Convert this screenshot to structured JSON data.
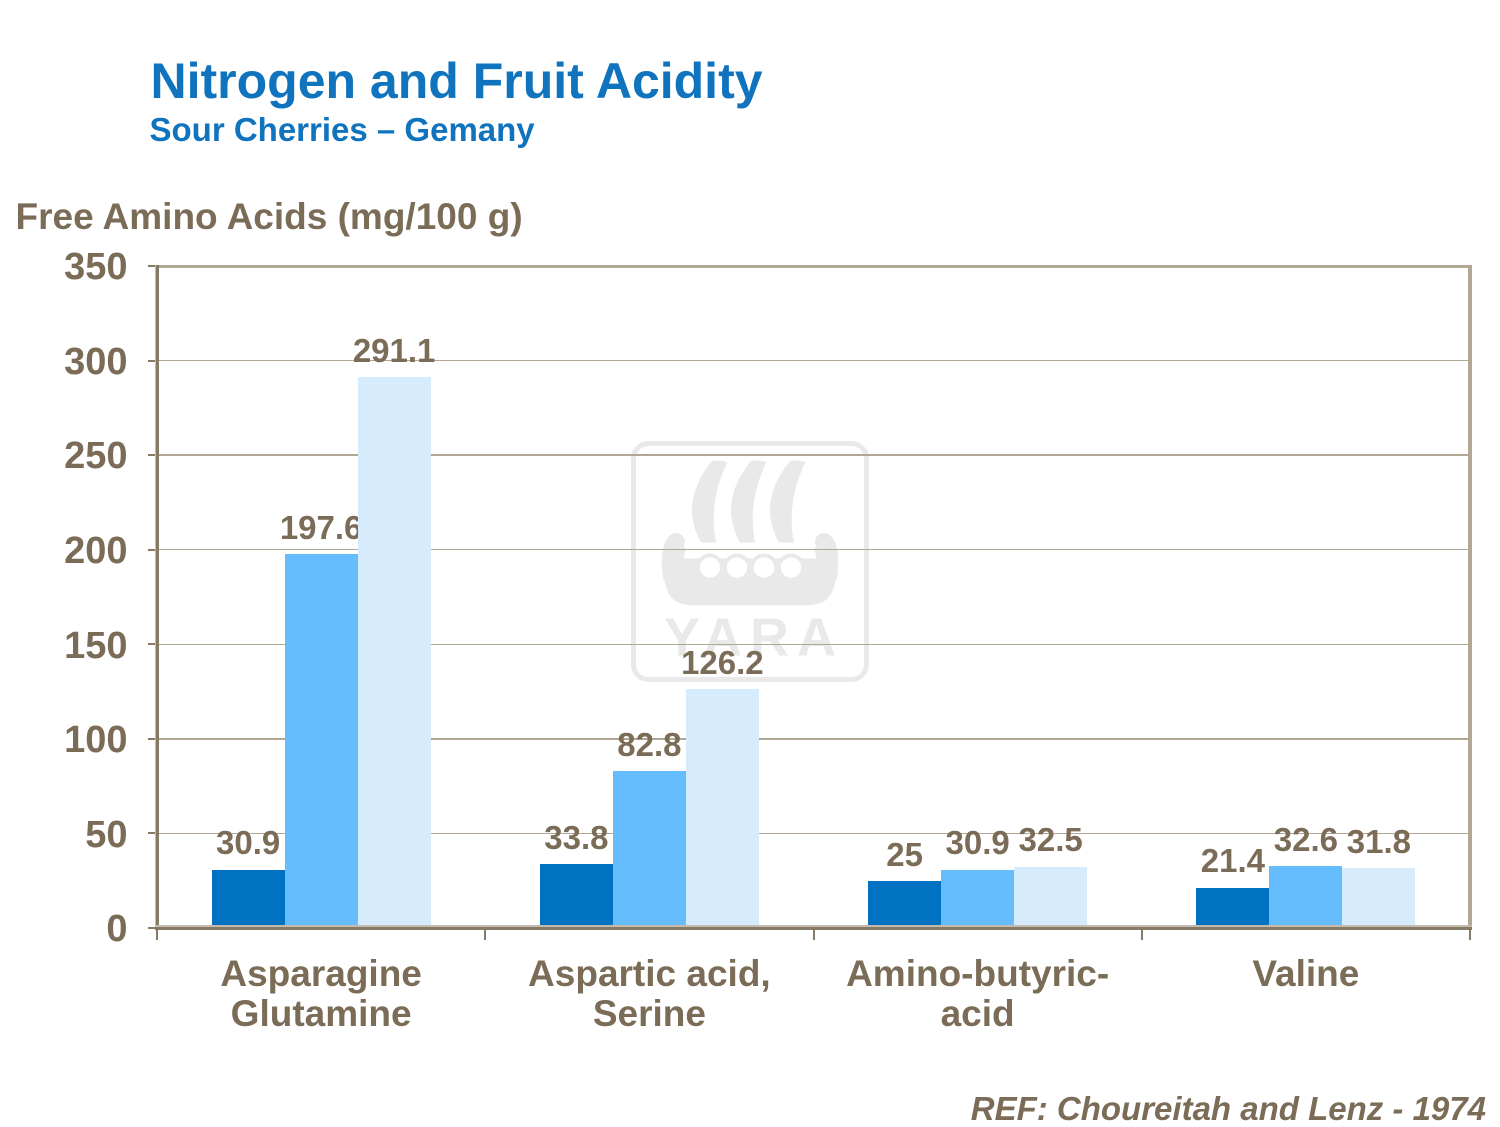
{
  "slide": {
    "title": "Nitrogen and Fruit Acidity",
    "subtitle": "Sour Cherries – Gemany",
    "reference": "REF: Choureitah and Lenz - 1974",
    "title_color": "#0f73bd",
    "text_color": "#7b6c57",
    "background_color": "#ffffff"
  },
  "watermark": {
    "icon": "yara-viking-ship-logo",
    "label": "YARA",
    "color": "#e9e9e9"
  },
  "chart_data": {
    "type": "bar",
    "ylabel": "Free Amino Acids (mg/100 g)",
    "categories": [
      {
        "label": "Asparagine Glutamine",
        "lines": [
          "Asparagine",
          "Glutamine"
        ]
      },
      {
        "label": "Aspartic acid, Serine",
        "lines": [
          "Aspartic acid,",
          "Serine"
        ]
      },
      {
        "label": "Amino-butyric-acid",
        "lines": [
          "Amino-butyric-",
          "acid"
        ]
      },
      {
        "label": "Valine",
        "lines": [
          "Valine"
        ]
      }
    ],
    "series": [
      {
        "color": "#0171c2",
        "values": [
          30.9,
          33.8,
          25,
          21.4
        ],
        "labels": [
          "30.9",
          "33.8",
          "25",
          "21.4"
        ]
      },
      {
        "color": "#66bdfe",
        "values": [
          197.6,
          82.8,
          30.9,
          32.6
        ],
        "labels": [
          "197.6",
          "82.8",
          "30.9",
          "32.6"
        ]
      },
      {
        "color": "#d6ebfc",
        "values": [
          291.1,
          126.2,
          32.5,
          31.8
        ],
        "labels": [
          "291.1",
          "126.2",
          "32.5",
          "31.8"
        ]
      }
    ],
    "ylim": [
      0,
      350
    ],
    "yticks": [
      0,
      50,
      100,
      150,
      200,
      250,
      300,
      350
    ],
    "grid": true,
    "legend": "none",
    "gridline_color": "#b2a695",
    "axis_color": "#877a65",
    "axis_highlight_color": "#c4bab0"
  }
}
